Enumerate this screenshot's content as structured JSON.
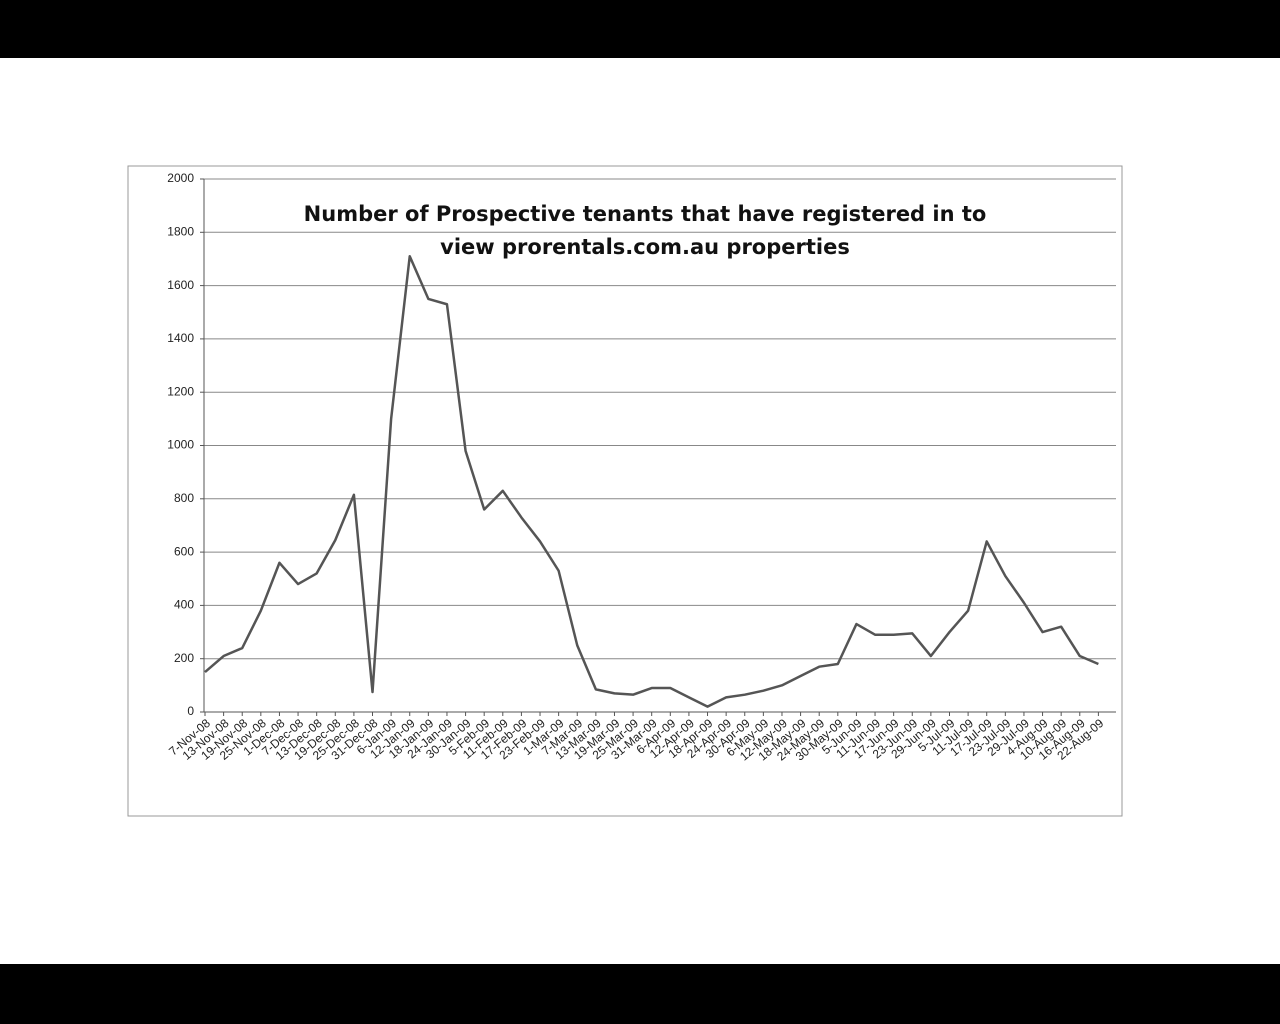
{
  "chart_data": {
    "type": "line",
    "title": "Number of Prospective tenants that have registered in to view prorentals.com.au properties",
    "categories": [
      "7-Nov-08",
      "13-Nov-08",
      "19-Nov-08",
      "25-Nov-08",
      "1-Dec-08",
      "7-Dec-08",
      "13-Dec-08",
      "19-Dec-08",
      "25-Dec-08",
      "31-Dec-08",
      "6-Jan-09",
      "12-Jan-09",
      "18-Jan-09",
      "24-Jan-09",
      "30-Jan-09",
      "5-Feb-09",
      "11-Feb-09",
      "17-Feb-09",
      "23-Feb-09",
      "1-Mar-09",
      "7-Mar-09",
      "13-Mar-09",
      "19-Mar-09",
      "25-Mar-09",
      "31-Mar-09",
      "6-Apr-09",
      "12-Apr-09",
      "18-Apr-09",
      "24-Apr-09",
      "30-Apr-09",
      "6-May-09",
      "12-May-09",
      "18-May-09",
      "24-May-09",
      "30-May-09",
      "5-Jun-09",
      "11-Jun-09",
      "17-Jun-09",
      "23-Jun-09",
      "29-Jun-09",
      "5-Jul-09",
      "11-Jul-09",
      "17-Jul-09",
      "23-Jul-09",
      "29-Jul-09",
      "4-Aug-09",
      "10-Aug-09",
      "16-Aug-09",
      "22-Aug-09"
    ],
    "values": [
      150,
      210,
      240,
      380,
      560,
      480,
      520,
      645,
      815,
      75,
      1100,
      1710,
      1550,
      1530,
      980,
      760,
      830,
      730,
      640,
      530,
      250,
      85,
      70,
      65,
      90,
      90,
      55,
      20,
      55,
      65,
      80,
      100,
      135,
      170,
      180,
      330,
      290,
      290,
      295,
      210,
      300,
      380,
      640,
      510,
      410,
      300,
      320,
      210,
      180
    ],
    "color": "#555555",
    "ylim": [
      0,
      2000
    ],
    "yticks": [
      0,
      200,
      400,
      600,
      800,
      1000,
      1200,
      1400,
      1600,
      1800,
      2000
    ],
    "grid": true
  }
}
